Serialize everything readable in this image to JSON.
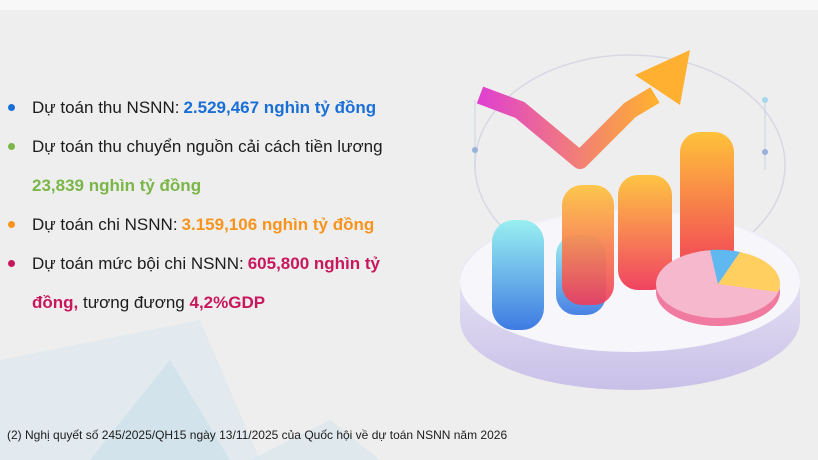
{
  "colors": {
    "blue": "#1a6fd6",
    "green": "#7ab648",
    "orange": "#f7941d",
    "crimson": "#c8175d"
  },
  "items": [
    {
      "label": "Dự toán thu NSNN: ",
      "value": "2.529,467  nghìn tỷ đồng",
      "color": "#1a6fd6"
    },
    {
      "label": "Dự toán thu chuyển nguồn cải cách tiền lương",
      "value": "23,839 nghìn tỷ đồng",
      "color": "#7ab648"
    },
    {
      "label": "Dự toán chi NSNN: ",
      "value": "3.159,106 nghìn tỷ đồng",
      "color": "#f7941d"
    },
    {
      "label": "Dự toán mức bội chi NSNN: ",
      "value": "605,800 nghìn tỷ",
      "value_cont": "đồng,",
      "suffix": " tương đương ",
      "suffix_value": "4,2%GDP",
      "color": "#c8175d"
    }
  ],
  "footnote": "(2) Nghị quyết số 245/2025/QH15 ngày 13/11/2025 của Quốc hội về dự toán NSNN năm 2026",
  "illustration": {
    "icon": "3d-bar-chart-rising-arrow-pie-icon"
  }
}
